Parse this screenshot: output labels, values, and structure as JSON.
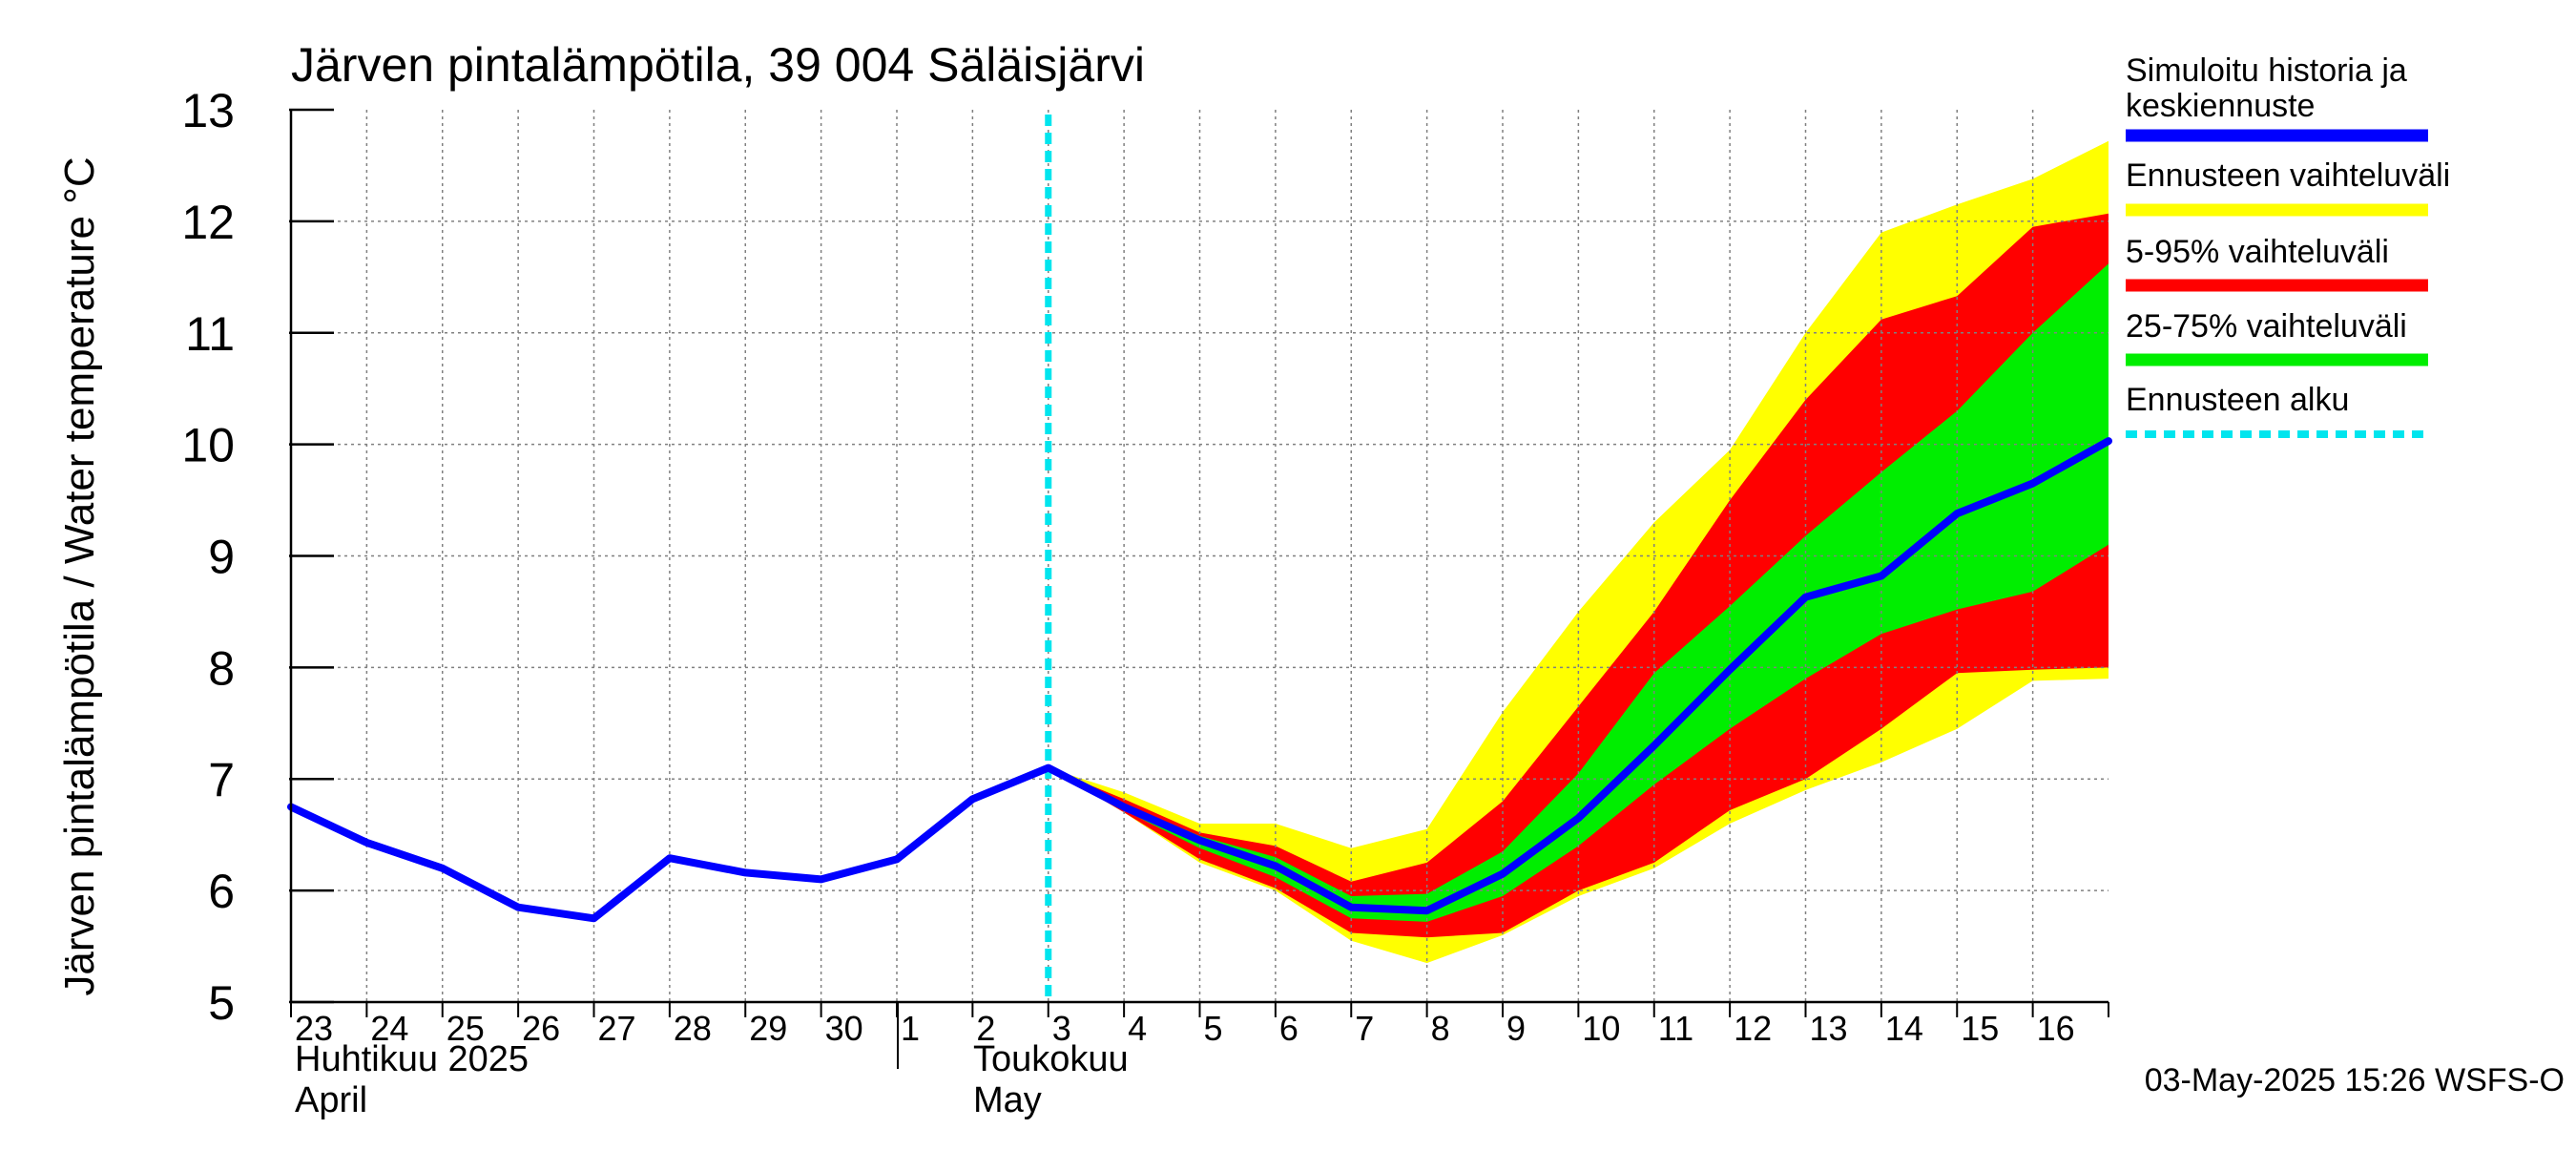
{
  "chart_data": {
    "type": "area",
    "title": "Järven pintalämpötila, 39 004 Säläisjärvi",
    "ylabel": "Järven pintalämpötila / Water temperature °C",
    "ylim": [
      5,
      13
    ],
    "yticks": [
      "5",
      "6",
      "7",
      "8",
      "9",
      "10",
      "11",
      "12",
      "13"
    ],
    "x_day_labels": [
      "23",
      "24",
      "25",
      "26",
      "27",
      "28",
      "29",
      "30",
      "1",
      "2",
      "3",
      "4",
      "5",
      "6",
      "7",
      "8",
      "9",
      "10",
      "11",
      "12",
      "13",
      "14",
      "15",
      "16"
    ],
    "month_labels": {
      "april_fi": "Huhtikuu  2025",
      "april_en": "April",
      "may_fi": "Toukokuu",
      "may_en": "May"
    },
    "legend": [
      {
        "label": "Simuloitu historia ja keskiennuste",
        "color": "#0000ff",
        "style": "solid"
      },
      {
        "label": "Ennusteen vaihteluväli",
        "color": "#ffff00",
        "style": "solid"
      },
      {
        "label": "5-95% vaihteluväli",
        "color": "#ff0000",
        "style": "solid"
      },
      {
        "label": "25-75% vaihteluväli",
        "color": "#00ee00",
        "style": "solid"
      },
      {
        "label": "Ennusteen alku",
        "color": "#00e5ee",
        "style": "dashed"
      }
    ],
    "forecast_start": "2025-05-03",
    "x_dates": [
      "2025-04-23",
      "2025-04-24",
      "2025-04-25",
      "2025-04-26",
      "2025-04-27",
      "2025-04-28",
      "2025-04-29",
      "2025-04-30",
      "2025-05-01",
      "2025-05-02",
      "2025-05-03",
      "2025-05-04",
      "2025-05-05",
      "2025-05-06",
      "2025-05-07",
      "2025-05-08",
      "2025-05-09",
      "2025-05-10",
      "2025-05-11",
      "2025-05-12",
      "2025-05-13",
      "2025-05-14",
      "2025-05-15",
      "2025-05-16",
      "2025-05-17"
    ],
    "series": [
      {
        "name": "Simuloitu historia ja keskiennuste",
        "values": [
          6.75,
          6.43,
          6.2,
          5.85,
          5.75,
          6.29,
          6.16,
          6.1,
          6.28,
          6.82,
          7.1,
          6.75,
          6.45,
          6.22,
          5.85,
          5.82,
          6.15,
          6.65,
          7.3,
          7.98,
          8.63,
          8.82,
          9.38,
          9.65,
          10.03
        ]
      }
    ],
    "bands": {
      "range_upper": [
        null,
        null,
        null,
        null,
        null,
        null,
        null,
        null,
        null,
        null,
        7.1,
        6.88,
        6.6,
        6.6,
        6.38,
        6.55,
        7.6,
        8.5,
        9.3,
        9.95,
        11.0,
        11.9,
        12.15,
        12.38,
        12.72
      ],
      "range_lower": [
        null,
        null,
        null,
        null,
        null,
        null,
        null,
        null,
        null,
        null,
        7.1,
        6.7,
        6.25,
        6.0,
        5.55,
        5.35,
        5.6,
        5.95,
        6.2,
        6.6,
        6.9,
        7.15,
        7.45,
        7.88,
        7.9
      ],
      "p95": [
        null,
        null,
        null,
        null,
        null,
        null,
        null,
        null,
        null,
        null,
        7.1,
        6.82,
        6.52,
        6.4,
        6.08,
        6.25,
        6.8,
        7.65,
        8.5,
        9.5,
        10.4,
        11.12,
        11.33,
        11.95,
        12.07
      ],
      "p5": [
        null,
        null,
        null,
        null,
        null,
        null,
        null,
        null,
        null,
        null,
        7.1,
        6.7,
        6.28,
        6.02,
        5.62,
        5.58,
        5.62,
        6.0,
        6.25,
        6.72,
        7.0,
        7.45,
        7.95,
        7.98,
        8.0
      ],
      "p75": [
        null,
        null,
        null,
        null,
        null,
        null,
        null,
        null,
        null,
        null,
        7.1,
        6.78,
        6.49,
        6.3,
        5.95,
        5.97,
        6.35,
        7.05,
        7.95,
        8.55,
        9.18,
        9.75,
        10.3,
        11.0,
        11.62
      ],
      "p25": [
        null,
        null,
        null,
        null,
        null,
        null,
        null,
        null,
        null,
        null,
        7.1,
        6.72,
        6.38,
        6.12,
        5.75,
        5.72,
        5.95,
        6.4,
        6.95,
        7.45,
        7.9,
        8.3,
        8.52,
        8.68,
        9.1
      ]
    },
    "grid": true,
    "legend_position": "right"
  },
  "timestamp": "03-May-2025 15:26 WSFS-O",
  "colors": {
    "median": "#0000ff",
    "range": "#ffff00",
    "p5_95": "#ff0000",
    "p25_75": "#00ee00",
    "forecast_start": "#00e5ee",
    "grid": "#808080"
  }
}
